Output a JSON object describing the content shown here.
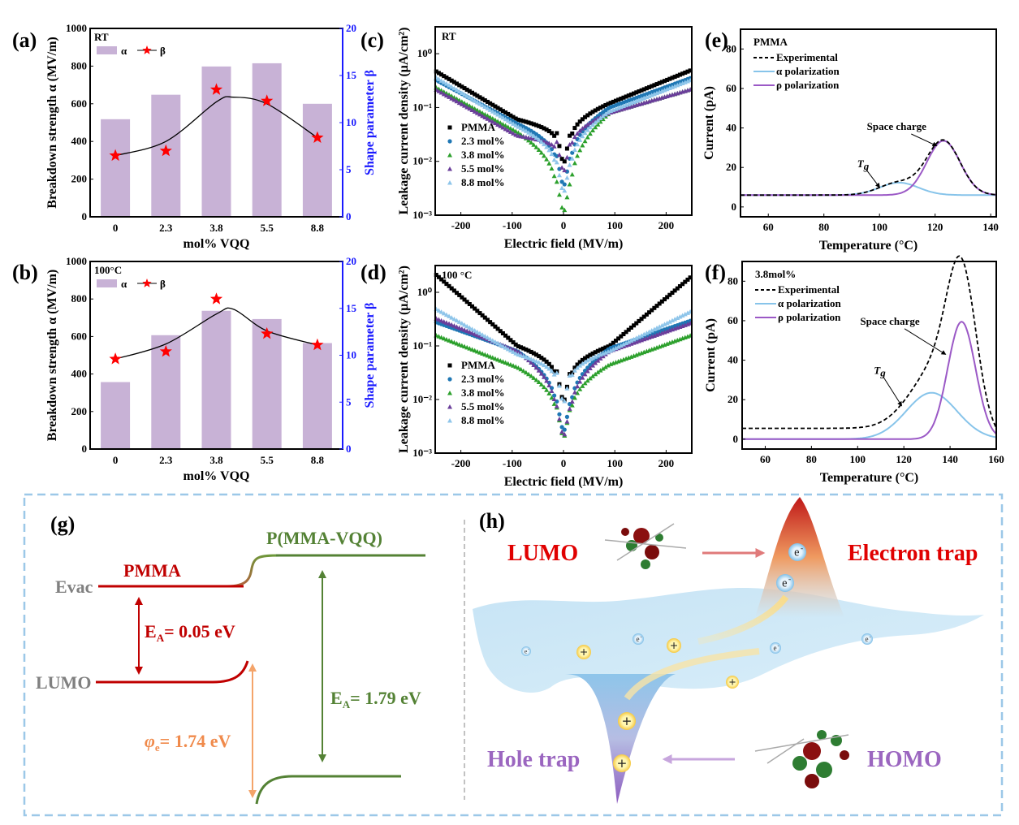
{
  "chart_data": [
    {
      "id": "a",
      "panel_label": "(a)",
      "type": "bar",
      "annotation": "RT",
      "categories": [
        "0",
        "2.3",
        "3.8",
        "5.5",
        "8.8"
      ],
      "series": [
        {
          "name": "α",
          "kind": "bar",
          "axis": "left",
          "color": "#c8b2d6",
          "values": [
            518,
            648,
            798,
            815,
            600
          ]
        },
        {
          "name": "β",
          "kind": "star-line",
          "axis": "right",
          "color": "#ff0000",
          "values": [
            6.5,
            7.0,
            13.5,
            12.3,
            8.4
          ]
        }
      ],
      "fit_curve_values": [
        6.5,
        8.0,
        12.2,
        12.0,
        8.4
      ],
      "xlabel": "mol% VQQ",
      "ylabel": "Breakdown strength α (MV/m)",
      "y2label": "Shape parameter β",
      "ylim": [
        0,
        1000
      ],
      "yticks": [
        "0",
        "200",
        "400",
        "600",
        "800",
        "1000"
      ],
      "y2lim": [
        0,
        20
      ],
      "y2ticks": [
        "0",
        "5",
        "10",
        "15",
        "20"
      ],
      "legend": [
        "α",
        "β"
      ]
    },
    {
      "id": "b",
      "panel_label": "(b)",
      "type": "bar",
      "annotation": "100°C",
      "categories": [
        "0",
        "2.3",
        "3.8",
        "5.5",
        "8.8"
      ],
      "series": [
        {
          "name": "α",
          "kind": "bar",
          "axis": "left",
          "color": "#c8b2d6",
          "values": [
            357,
            607,
            737,
            693,
            565
          ]
        },
        {
          "name": "β",
          "kind": "star-line",
          "axis": "right",
          "color": "#ff0000",
          "values": [
            9.6,
            10.4,
            16.0,
            12.3,
            11.1
          ]
        }
      ],
      "fit_curve_values": [
        9.6,
        11.2,
        14.4,
        12.6,
        11.1
      ],
      "xlabel": "mol% VQQ",
      "ylabel": "Breakdown strength α (MV/m)",
      "y2label": "Shape parameter β",
      "ylim": [
        0,
        1000
      ],
      "yticks": [
        "0",
        "200",
        "400",
        "600",
        "800",
        "1000"
      ],
      "y2lim": [
        0,
        20
      ],
      "y2ticks": [
        "0",
        "5",
        "10",
        "15",
        "20"
      ],
      "legend": [
        "α",
        "β"
      ]
    },
    {
      "id": "c",
      "panel_label": "(c)",
      "type": "scatter",
      "annotation": "RT",
      "xlabel": "Electric field (MV/m)",
      "ylabel": "Leakage current density (μA/cm²)",
      "xlim": [
        -250,
        250
      ],
      "xticks": [
        -200,
        -100,
        0,
        100,
        200
      ],
      "ylim_log10": [
        -3,
        0.5
      ],
      "yticks": [
        "10⁻³",
        "10⁻²",
        "10⁻¹",
        "10⁰"
      ],
      "series": [
        {
          "name": "PMMA",
          "marker": "square",
          "color": "#000000",
          "left_end": 0.48,
          "mid_neg": 0.06,
          "near_zero": 0.008,
          "mid_pos": 0.12,
          "right_end": 0.5
        },
        {
          "name": "2.3 mol%",
          "marker": "circle",
          "color": "#1f77b4",
          "left_end": 0.33,
          "mid_neg": 0.05,
          "near_zero": 0.003,
          "mid_pos": 0.1,
          "right_end": 0.36
        },
        {
          "name": "3.8 mol%",
          "marker": "triangle",
          "color": "#2ca02c",
          "left_end": 0.24,
          "mid_neg": 0.035,
          "near_zero": 0.001,
          "mid_pos": 0.08,
          "right_end": 0.22
        },
        {
          "name": "5.5 mol%",
          "marker": "triangle",
          "color": "#6a3d9a",
          "left_end": 0.22,
          "mid_neg": 0.03,
          "near_zero": 0.0055,
          "mid_pos": 0.08,
          "right_end": 0.22
        },
        {
          "name": "8.8 mol%",
          "marker": "triangle",
          "color": "#8ec5ea",
          "left_end": 0.37,
          "mid_neg": 0.045,
          "near_zero": 0.0023,
          "mid_pos": 0.085,
          "right_end": 0.33
        }
      ],
      "legend_position": "bottom-left"
    },
    {
      "id": "d",
      "panel_label": "(d)",
      "type": "scatter",
      "annotation": "100 °C",
      "xlabel": "Electric field (MV/m)",
      "ylabel": "Leakage current density (μA/cm²)",
      "xlim": [
        -250,
        250
      ],
      "xticks": [
        -200,
        -100,
        0,
        100,
        200
      ],
      "ylim_log10": [
        -3,
        0.5
      ],
      "yticks": [
        "10⁻³",
        "10⁻²",
        "10⁻¹",
        "10⁰"
      ],
      "series": [
        {
          "name": "PMMA",
          "marker": "square",
          "color": "#000000",
          "left_end": 2.2,
          "mid_neg": 0.1,
          "near_zero": 0.008,
          "mid_pos": 0.1,
          "right_end": 2.0
        },
        {
          "name": "2.3 mol%",
          "marker": "circle",
          "color": "#1f77b4",
          "left_end": 0.28,
          "mid_neg": 0.08,
          "near_zero": 0.0022,
          "mid_pos": 0.09,
          "right_end": 0.3
        },
        {
          "name": "3.8 mol%",
          "marker": "triangle",
          "color": "#2ca02c",
          "left_end": 0.16,
          "mid_neg": 0.04,
          "near_zero": 0.0017,
          "mid_pos": 0.045,
          "right_end": 0.16
        },
        {
          "name": "5.5 mol%",
          "marker": "triangle",
          "color": "#6a3d9a",
          "left_end": 0.33,
          "mid_neg": 0.08,
          "near_zero": 0.0018,
          "mid_pos": 0.08,
          "right_end": 0.27
        },
        {
          "name": "8.8 mol%",
          "marker": "triangle",
          "color": "#8ec5ea",
          "left_end": 0.5,
          "mid_neg": 0.07,
          "near_zero": 0.0075,
          "mid_pos": 0.08,
          "right_end": 0.45
        }
      ],
      "legend_position": "bottom-left"
    },
    {
      "id": "e",
      "panel_label": "(e)",
      "type": "line",
      "annotation": "PMMA",
      "xlabel": "Temperature (°C)",
      "ylabel": "Current (pA)",
      "xlim": [
        50,
        142
      ],
      "xticks": [
        60,
        80,
        100,
        120,
        140
      ],
      "ylim": [
        -5,
        90
      ],
      "yticks": [
        0,
        20,
        40,
        60,
        80
      ],
      "baseline": 6,
      "series": [
        {
          "name": "Experimental",
          "style": "dashed",
          "color": "#000000"
        },
        {
          "name": "α polarization",
          "style": "solid",
          "color": "#87c4ea",
          "peak_x": 107,
          "peak_y": 12.3,
          "width": 7
        },
        {
          "name": "ρ polarization",
          "style": "solid",
          "color": "#9b59c6",
          "peak_x": 123,
          "peak_y": 33.5,
          "width": 6
        }
      ],
      "annotations": [
        "Space charge",
        "Tg"
      ],
      "legend_position": "top-left"
    },
    {
      "id": "f",
      "panel_label": "(f)",
      "type": "line",
      "annotation": "3.8mol%",
      "xlabel": "Temperature (°C)",
      "ylabel": "Current (pA)",
      "xlim": [
        50,
        160
      ],
      "xticks": [
        60,
        80,
        100,
        120,
        140,
        160
      ],
      "ylim": [
        -5,
        90
      ],
      "yticks": [
        0,
        20,
        40,
        60,
        80
      ],
      "baseline": 0,
      "series": [
        {
          "name": "Experimental",
          "style": "dashed",
          "color": "#000000",
          "peak_x": 144,
          "peak_y": 81
        },
        {
          "name": "α polarization",
          "style": "solid",
          "color": "#87c4ea",
          "peak_x": 132,
          "peak_y": 23.5,
          "width": 11
        },
        {
          "name": "ρ polarization",
          "style": "solid",
          "color": "#9b59c6",
          "peak_x": 145,
          "peak_y": 59.5,
          "width": 6
        }
      ],
      "annotations": [
        "Space charge",
        "Tg"
      ],
      "legend_position": "top-left"
    }
  ],
  "diagram_g": {
    "panel_label": "(g)",
    "evac_label": "Evac",
    "lumo_label": "LUMO",
    "pmma_label": "PMMA",
    "copolymer_label": "P(MMA-VQQ)",
    "ea_pmma": "E",
    "ea_pmma_sub": "A",
    "ea_pmma_value": "= 0.05 eV",
    "ea_copolymer": "E",
    "ea_copolymer_sub": "A",
    "ea_copolymer_value": "= 1.79 eV",
    "phi": "φ",
    "phi_sub": "e",
    "phi_value": "= 1.74 eV",
    "colors": {
      "pmma": "#c00000",
      "copolymer": "#548235",
      "phi": "#f4a46a",
      "gray": "#808080"
    }
  },
  "diagram_h": {
    "panel_label": "(h)",
    "lumo_label": "LUMO",
    "homo_label": "HOMO",
    "electron_trap_label": "Electron trap",
    "hole_trap_label": "Hole trap",
    "electron_symbol": "e",
    "electron_sup": "-",
    "hole_symbol": "+",
    "colors": {
      "lumo": "#e00000",
      "homo": "#9b66c0",
      "surface": "#cfe8f6"
    }
  }
}
